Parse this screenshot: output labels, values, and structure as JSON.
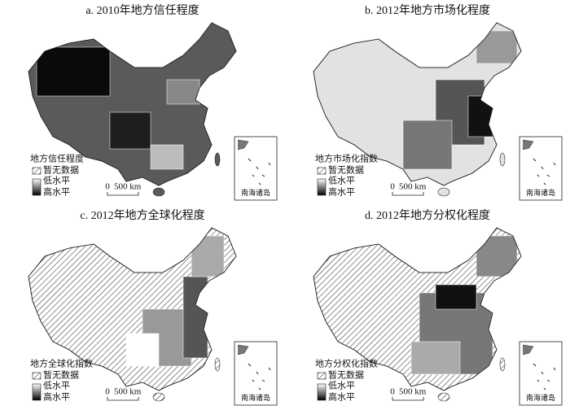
{
  "panels": [
    {
      "title": "a. 2010年地方信任程度",
      "legend_title": "地方信任程度",
      "legend_items": [
        "暂无数据",
        "低水平",
        "高水平"
      ],
      "scale": [
        "0",
        "500 km"
      ],
      "inset_label": "南海诸岛"
    },
    {
      "title": "b. 2012年地方市场化程度",
      "legend_title": "地方市场化指数",
      "legend_items": [
        "暂无数据",
        "低水平",
        "高水平"
      ],
      "scale": [
        "0",
        "500 km"
      ],
      "inset_label": "南海诸岛"
    },
    {
      "title": "c. 2012年地方全球化程度",
      "legend_title": "地方全球化指数",
      "legend_items": [
        "暂无数据",
        "低水平",
        "高水平"
      ],
      "scale": [
        "0",
        "500 km"
      ],
      "inset_label": "南海诸岛"
    },
    {
      "title": "d. 2012年地方分权化程度",
      "legend_title": "地方分权化指数",
      "legend_items": [
        "暂无数据",
        "低水平",
        "高水平"
      ],
      "scale": [
        "0",
        "500 km"
      ],
      "inset_label": "南海诸岛"
    }
  ]
}
